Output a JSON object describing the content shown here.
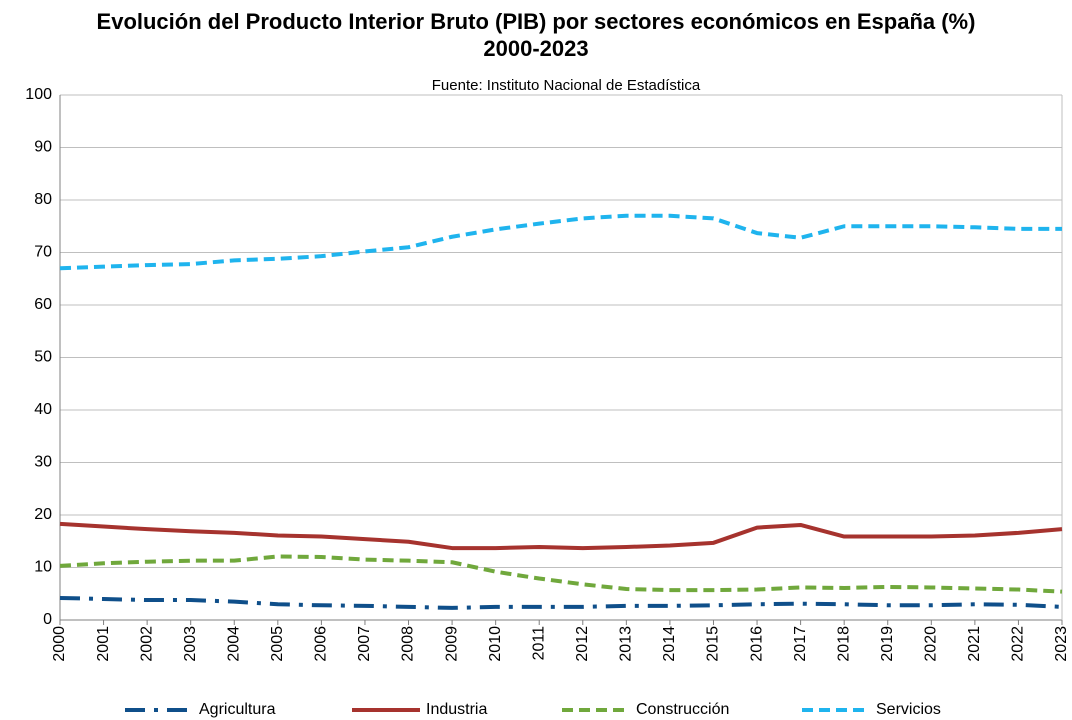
{
  "chart_data": {
    "type": "line",
    "title": "Evolución del Producto Interior Bruto (PIB) por sectores económicos en España (%) 2000-2023",
    "subtitle": "Fuente: Instituto Nacional de Estadística",
    "categories": [
      "2000",
      "2001",
      "2002",
      "2003",
      "2004",
      "2005",
      "2006",
      "2007",
      "2008",
      "2009",
      "2010",
      "2011",
      "2012",
      "2013",
      "2014",
      "2015",
      "2016",
      "2017",
      "2018",
      "2019",
      "2020",
      "2021",
      "2022",
      "2023"
    ],
    "series": [
      {
        "name": "Agricultura",
        "color": "#0f4f8a",
        "dash": "dash-dot",
        "values": [
          4.2,
          4,
          3.8,
          3.8,
          3.5,
          3,
          2.8,
          2.7,
          2.5,
          2.3,
          2.5,
          2.5,
          2.5,
          2.7,
          2.7,
          2.8,
          3,
          3.1,
          3,
          2.8,
          2.8,
          3,
          2.9,
          2.5
        ]
      },
      {
        "name": "Industria",
        "color": "#a6332e",
        "dash": "solid",
        "values": [
          18.3,
          17.8,
          17.3,
          16.9,
          16.6,
          16.1,
          15.9,
          15.4,
          14.9,
          13.7,
          13.7,
          13.9,
          13.7,
          13.9,
          14.2,
          14.7,
          17.6,
          18.1,
          15.9,
          15.9,
          15.9,
          16.1,
          16.6,
          17.3
        ]
      },
      {
        "name": "Construcción",
        "color": "#70a83c",
        "dash": "dash",
        "values": [
          10.3,
          10.8,
          11.1,
          11.3,
          11.3,
          12.1,
          12,
          11.5,
          11.3,
          11,
          9.2,
          7.9,
          6.8,
          5.9,
          5.7,
          5.7,
          5.8,
          6.2,
          6.1,
          6.3,
          6.2,
          6,
          5.8,
          5.4
        ]
      },
      {
        "name": "Servicios",
        "color": "#1fb4ee",
        "dash": "dash",
        "values": [
          67,
          67.3,
          67.6,
          67.8,
          68.5,
          68.8,
          69.3,
          70.2,
          71,
          73,
          74.4,
          75.5,
          76.5,
          77,
          77,
          76.5,
          73.7,
          72.8,
          75,
          75,
          75,
          74.8,
          74.5,
          74.5
        ]
      }
    ],
    "ylim": [
      0,
      100
    ],
    "yticks": [
      0,
      10,
      20,
      30,
      40,
      50,
      60,
      70,
      80,
      90,
      100
    ],
    "grid": true,
    "legend": "bottom"
  }
}
